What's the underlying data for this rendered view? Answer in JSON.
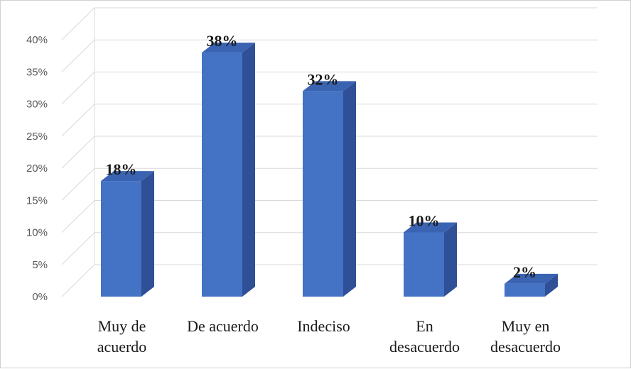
{
  "chart_data": {
    "type": "bar",
    "style": "3d-column",
    "categories": [
      [
        "Muy de",
        "acuerdo"
      ],
      [
        "De acuerdo"
      ],
      [
        "Indeciso"
      ],
      [
        "En",
        "desacuerdo"
      ],
      [
        "Muy en",
        "desacuerdo"
      ]
    ],
    "values": [
      18,
      38,
      32,
      10,
      2
    ],
    "data_labels": [
      "18%",
      "38%",
      "32%",
      "10%",
      "2%"
    ],
    "y_ticks": [
      "0%",
      "5%",
      "10%",
      "15%",
      "20%",
      "25%",
      "30%",
      "35%",
      "40%"
    ],
    "ylim": [
      0,
      40
    ],
    "grid": true,
    "legend": "none",
    "colors": {
      "front": "#4472C4",
      "side": "#2F5096",
      "top": "#3A64B2",
      "grid": "#D9D9D9"
    }
  }
}
